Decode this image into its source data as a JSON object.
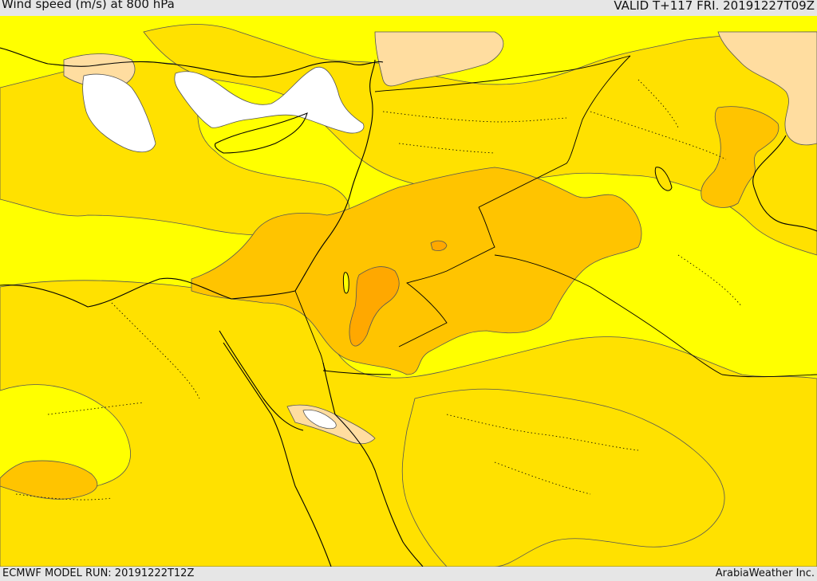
{
  "header": {
    "title": "Wind speed (m/s) at 800 hPa",
    "valid": "VALID T+117 FRI. 20191227T09Z"
  },
  "footer": {
    "model_run": "ECMWF MODEL RUN: 20191222T12Z",
    "credit": "ArabiaWeather Inc."
  },
  "palette": {
    "band_0_5": "#ffffff",
    "band_5_10": "#ffff00",
    "band_10_15": "#ffe100",
    "band_15_20": "#ffc400",
    "band_20_25": "#ffa800",
    "band_25_30": "#ffdda0",
    "border": "#000000",
    "coast": "#000000",
    "contour": "#444444"
  }
}
